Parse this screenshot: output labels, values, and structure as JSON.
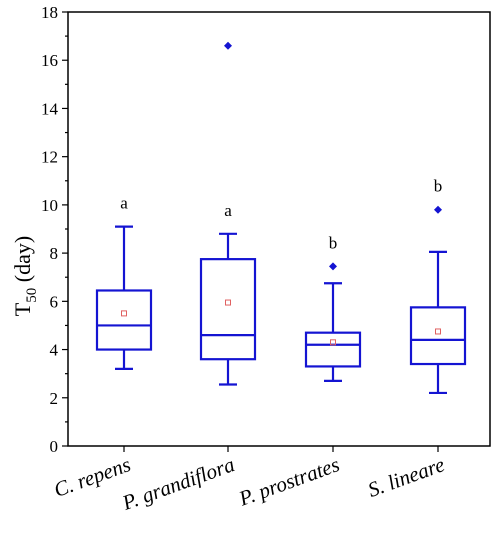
{
  "chart_data": {
    "type": "box",
    "title": "",
    "ylabel_main": "T",
    "ylabel_sub": "50",
    "ylabel_unit": " (day)",
    "ylim": [
      0,
      18
    ],
    "y_major_ticks": [
      0,
      2,
      4,
      6,
      8,
      10,
      12,
      14,
      16,
      18
    ],
    "grid": false,
    "legend": "none",
    "box_color": "#1414d2",
    "mean_marker_color": "#e06060",
    "categories": [
      "C. repens",
      "P. grandiflora",
      "P. prostrates",
      "S. lineare"
    ],
    "boxes": [
      {
        "category": "C. repens",
        "whisker_low": 3.2,
        "q1": 4.0,
        "median": 5.0,
        "q3": 6.45,
        "whisker_high": 9.1,
        "mean": 5.5,
        "outliers": [],
        "group_letter": "a"
      },
      {
        "category": "P. grandiflora",
        "whisker_low": 2.55,
        "q1": 3.6,
        "median": 4.6,
        "q3": 7.75,
        "whisker_high": 8.8,
        "mean": 5.95,
        "outliers": [
          16.6
        ],
        "group_letter": "a"
      },
      {
        "category": "P. prostrates",
        "whisker_low": 2.7,
        "q1": 3.3,
        "median": 4.2,
        "q3": 4.7,
        "whisker_high": 6.75,
        "mean": 4.3,
        "outliers": [
          7.45
        ],
        "group_letter": "b"
      },
      {
        "category": "S. lineare",
        "whisker_low": 2.2,
        "q1": 3.4,
        "median": 4.4,
        "q3": 5.75,
        "whisker_high": 8.05,
        "mean": 4.75,
        "outliers": [
          9.8
        ],
        "group_letter": "b"
      }
    ]
  }
}
